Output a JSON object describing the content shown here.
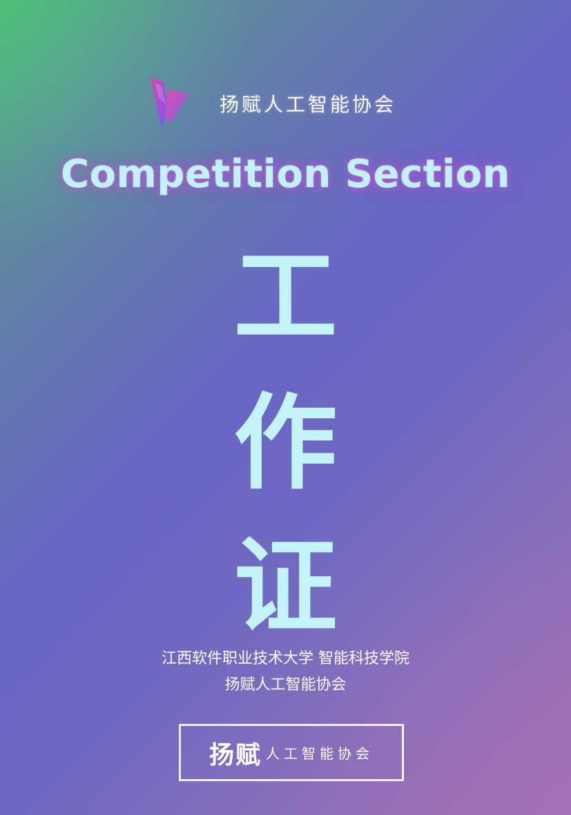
{
  "header": {
    "org_name": "扬赋人工智能协会",
    "logo_icon": "y-logo-icon"
  },
  "section_title": "Competition Section",
  "title_chars": [
    "工",
    "作",
    "证"
  ],
  "org_lines": [
    "江西软件职业技术大学 智能科技学院",
    "扬赋人工智能协会"
  ],
  "badge": {
    "brand": "扬赋",
    "sub": "人工智能协会"
  },
  "colors": {
    "gradient_start": "#49b36e",
    "gradient_mid": "#6a66c6",
    "gradient_end": "#a06fb0",
    "title_text": "#c3f4f8",
    "title_glow": "#be50dc",
    "white": "#ffffff"
  }
}
